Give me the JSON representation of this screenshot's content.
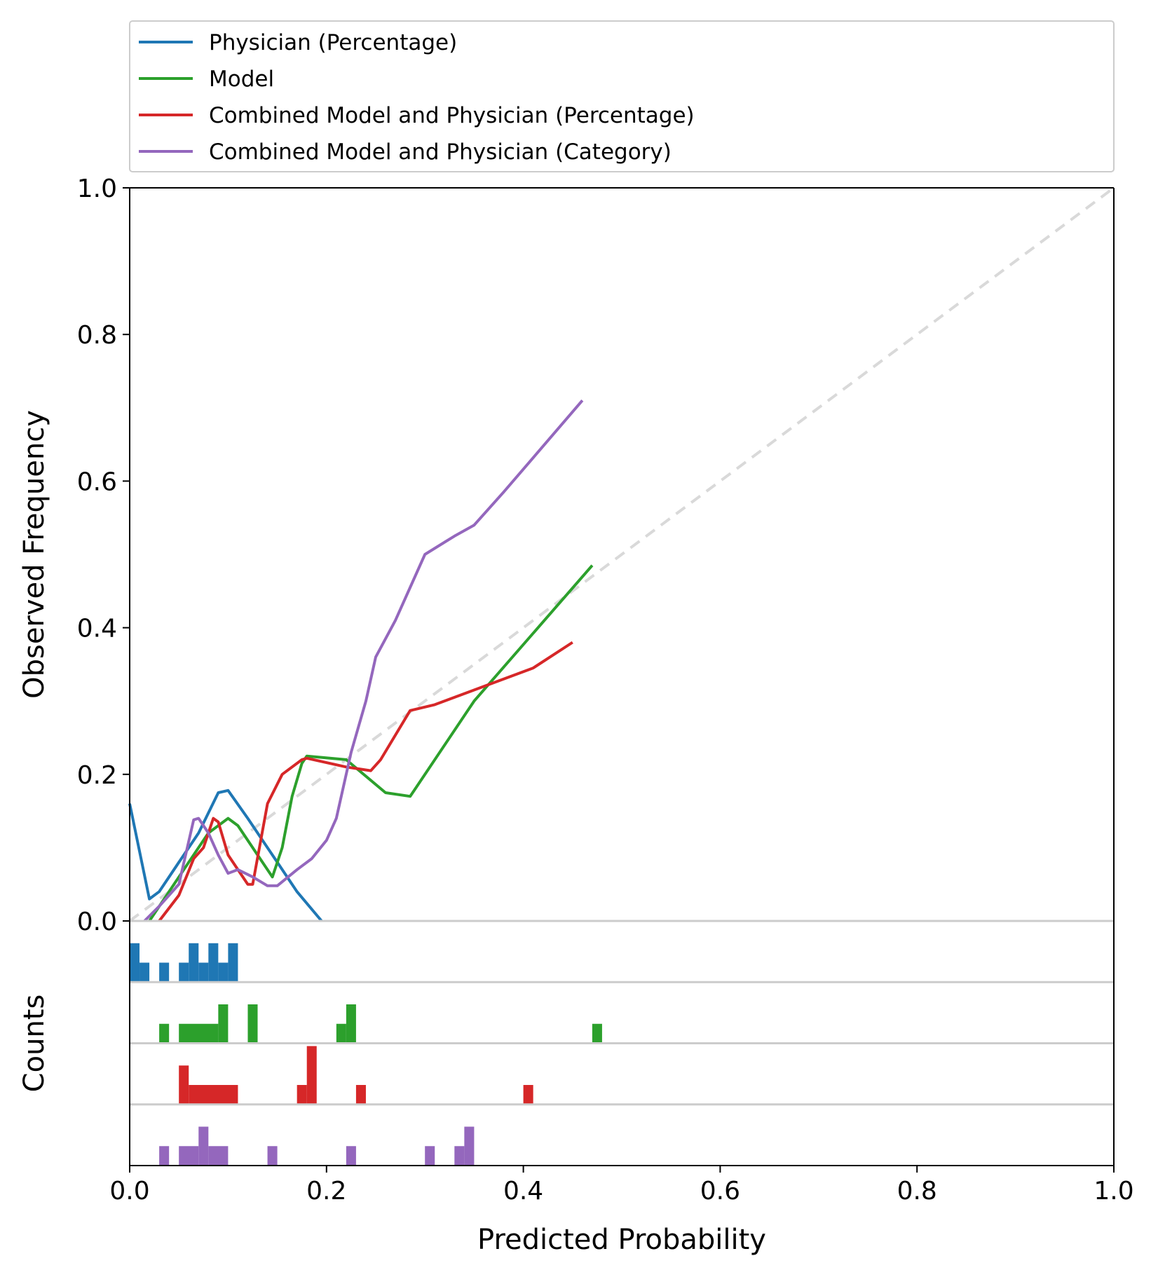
{
  "chart_data": {
    "type": "line",
    "xlabel": "Predicted Probability",
    "ylabel": "Observed Frequency",
    "counts_label": "Counts",
    "xlim": [
      0,
      1
    ],
    "ylim": [
      0,
      1
    ],
    "x_ticks": [
      "0.0",
      "0.2",
      "0.4",
      "0.6",
      "0.8",
      "1.0"
    ],
    "y_ticks": [
      "0.0",
      "0.2",
      "0.4",
      "0.6",
      "0.8",
      "1.0"
    ],
    "legend_position": "top",
    "reference_line": {
      "style": "dashed",
      "color": "#d9d9d9",
      "points": [
        [
          0,
          0
        ],
        [
          1,
          1
        ]
      ]
    },
    "series": [
      {
        "name": "Physician (Percentage)",
        "color": "#1f77b4",
        "points": [
          [
            0.0,
            0.16
          ],
          [
            0.02,
            0.03
          ],
          [
            0.03,
            0.04
          ],
          [
            0.05,
            0.08
          ],
          [
            0.07,
            0.12
          ],
          [
            0.09,
            0.175
          ],
          [
            0.1,
            0.178
          ],
          [
            0.12,
            0.14
          ],
          [
            0.15,
            0.08
          ],
          [
            0.17,
            0.04
          ],
          [
            0.195,
            0.0
          ]
        ],
        "hist_bins": [
          [
            0.0,
            0.01,
            2
          ],
          [
            0.01,
            0.02,
            1
          ],
          [
            0.03,
            0.04,
            1
          ],
          [
            0.05,
            0.06,
            1
          ],
          [
            0.06,
            0.07,
            2
          ],
          [
            0.07,
            0.08,
            1
          ],
          [
            0.08,
            0.09,
            2
          ],
          [
            0.09,
            0.1,
            1
          ],
          [
            0.1,
            0.11,
            2
          ]
        ]
      },
      {
        "name": "Model",
        "color": "#2ca02c",
        "points": [
          [
            0.02,
            0.0
          ],
          [
            0.04,
            0.04
          ],
          [
            0.06,
            0.08
          ],
          [
            0.08,
            0.12
          ],
          [
            0.09,
            0.13
          ],
          [
            0.1,
            0.14
          ],
          [
            0.11,
            0.13
          ],
          [
            0.13,
            0.09
          ],
          [
            0.145,
            0.06
          ],
          [
            0.155,
            0.1
          ],
          [
            0.165,
            0.17
          ],
          [
            0.175,
            0.215
          ],
          [
            0.18,
            0.225
          ],
          [
            0.22,
            0.22
          ],
          [
            0.26,
            0.175
          ],
          [
            0.285,
            0.17
          ],
          [
            0.29,
            0.18
          ],
          [
            0.35,
            0.3
          ],
          [
            0.47,
            0.485
          ]
        ],
        "hist_bins": [
          [
            0.03,
            0.04,
            1
          ],
          [
            0.05,
            0.09,
            1
          ],
          [
            0.09,
            0.1,
            2
          ],
          [
            0.12,
            0.13,
            2
          ],
          [
            0.21,
            0.22,
            1
          ],
          [
            0.22,
            0.23,
            2
          ],
          [
            0.47,
            0.48,
            1
          ]
        ]
      },
      {
        "name": "Combined Model and Physician (Percentage)",
        "color": "#d62728",
        "points": [
          [
            0.03,
            0.0
          ],
          [
            0.05,
            0.035
          ],
          [
            0.065,
            0.085
          ],
          [
            0.075,
            0.1
          ],
          [
            0.085,
            0.14
          ],
          [
            0.09,
            0.135
          ],
          [
            0.1,
            0.09
          ],
          [
            0.12,
            0.05
          ],
          [
            0.125,
            0.05
          ],
          [
            0.14,
            0.16
          ],
          [
            0.155,
            0.2
          ],
          [
            0.175,
            0.22
          ],
          [
            0.18,
            0.222
          ],
          [
            0.22,
            0.21
          ],
          [
            0.245,
            0.205
          ],
          [
            0.255,
            0.22
          ],
          [
            0.285,
            0.287
          ],
          [
            0.31,
            0.295
          ],
          [
            0.41,
            0.345
          ],
          [
            0.45,
            0.38
          ]
        ],
        "hist_bins": [
          [
            0.05,
            0.06,
            2
          ],
          [
            0.06,
            0.11,
            1
          ],
          [
            0.17,
            0.18,
            1
          ],
          [
            0.18,
            0.19,
            3
          ],
          [
            0.23,
            0.24,
            1
          ],
          [
            0.4,
            0.41,
            1
          ]
        ]
      },
      {
        "name": "Combined Model and Physician (Category)",
        "color": "#9467bd",
        "points": [
          [
            0.015,
            0.0
          ],
          [
            0.03,
            0.02
          ],
          [
            0.05,
            0.05
          ],
          [
            0.065,
            0.138
          ],
          [
            0.07,
            0.14
          ],
          [
            0.08,
            0.12
          ],
          [
            0.09,
            0.09
          ],
          [
            0.1,
            0.065
          ],
          [
            0.11,
            0.07
          ],
          [
            0.125,
            0.06
          ],
          [
            0.14,
            0.048
          ],
          [
            0.15,
            0.048
          ],
          [
            0.17,
            0.07
          ],
          [
            0.185,
            0.085
          ],
          [
            0.2,
            0.11
          ],
          [
            0.21,
            0.14
          ],
          [
            0.225,
            0.23
          ],
          [
            0.24,
            0.3
          ],
          [
            0.25,
            0.36
          ],
          [
            0.27,
            0.41
          ],
          [
            0.3,
            0.5
          ],
          [
            0.33,
            0.525
          ],
          [
            0.35,
            0.54
          ],
          [
            0.38,
            0.585
          ],
          [
            0.46,
            0.71
          ]
        ],
        "hist_bins": [
          [
            0.03,
            0.04,
            1
          ],
          [
            0.05,
            0.07,
            1
          ],
          [
            0.07,
            0.08,
            2
          ],
          [
            0.08,
            0.1,
            1
          ],
          [
            0.14,
            0.15,
            1
          ],
          [
            0.22,
            0.23,
            1
          ],
          [
            0.3,
            0.31,
            1
          ],
          [
            0.33,
            0.34,
            1
          ],
          [
            0.34,
            0.35,
            2
          ]
        ]
      }
    ]
  }
}
